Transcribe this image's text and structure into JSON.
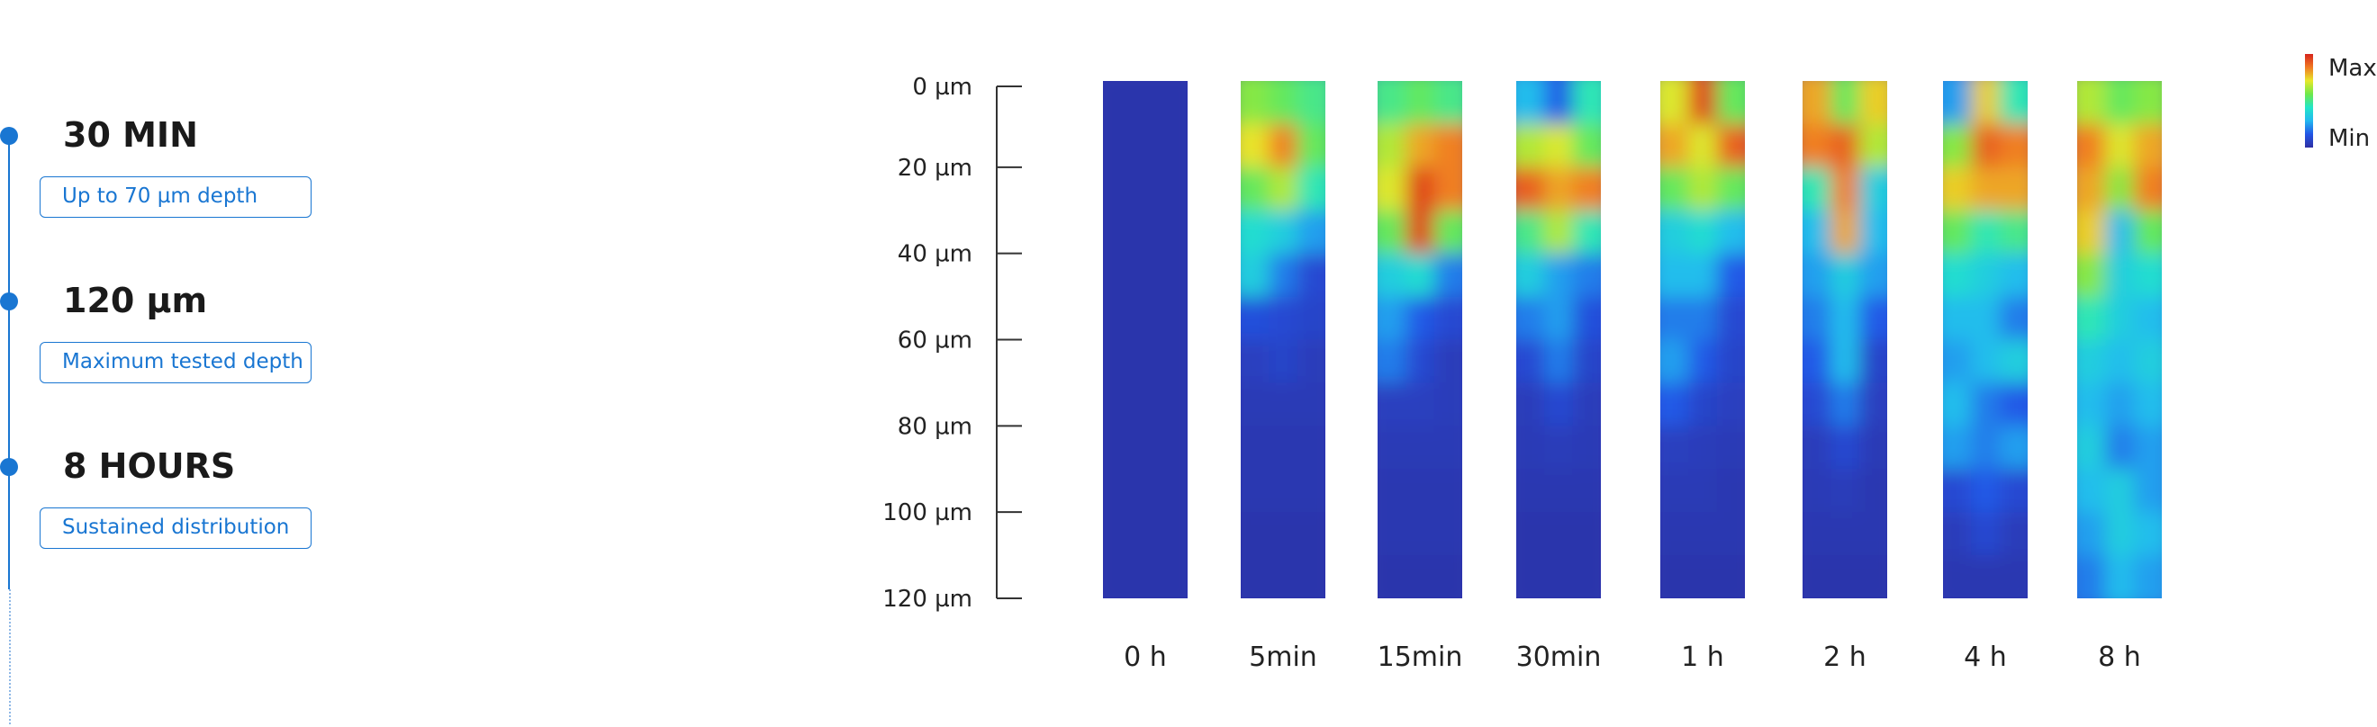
{
  "stats": [
    {
      "value": "30 MIN",
      "label": "Up to 70 µm depth"
    },
    {
      "value": "120 µm",
      "label": "Maximum tested depth"
    },
    {
      "value": "8 HOURS",
      "label": "Sustained distribution"
    }
  ],
  "chart_data": {
    "type": "heatmap",
    "title": "",
    "xlabel": "",
    "ylabel": "",
    "categories": [
      "0 h",
      "5min",
      "15min",
      "30min",
      "1 h",
      "2 h",
      "4 h",
      "8 h"
    ],
    "y_ticks": [
      "0 µm",
      "20 µm",
      "40 µm",
      "60 µm",
      "80 µm",
      "100 µm",
      "120 µm"
    ],
    "ylim": [
      0,
      120
    ],
    "y_unit": "µm",
    "legend": {
      "max_label": "Max",
      "min_label": "Min",
      "position": "top-right"
    },
    "colormap": [
      "#2e2fa3",
      "#2255e6",
      "#22b8f0",
      "#22e6c8",
      "#6ee84a",
      "#e8e82a",
      "#f07a22",
      "#d6241c"
    ],
    "intensity_scale": [
      0,
      1
    ],
    "series": [
      {
        "values": [
          [
            0.02,
            0.02,
            0.02
          ],
          [
            0.02,
            0.02,
            0.02
          ],
          [
            0.02,
            0.02,
            0.02
          ],
          [
            0.02,
            0.02,
            0.02
          ],
          [
            0.02,
            0.02,
            0.02
          ],
          [
            0.02,
            0.02,
            0.02
          ],
          [
            0.02,
            0.02,
            0.02
          ],
          [
            0.02,
            0.02,
            0.02
          ],
          [
            0.02,
            0.02,
            0.02
          ],
          [
            0.02,
            0.02,
            0.02
          ],
          [
            0.02,
            0.02,
            0.02
          ],
          [
            0.02,
            0.02,
            0.02
          ]
        ]
      },
      {
        "values": [
          [
            0.6,
            0.55,
            0.5
          ],
          [
            0.72,
            0.85,
            0.55
          ],
          [
            0.55,
            0.65,
            0.45
          ],
          [
            0.4,
            0.35,
            0.25
          ],
          [
            0.35,
            0.2,
            0.1
          ],
          [
            0.12,
            0.1,
            0.08
          ],
          [
            0.06,
            0.08,
            0.05
          ],
          [
            0.04,
            0.04,
            0.04
          ],
          [
            0.03,
            0.03,
            0.03
          ],
          [
            0.03,
            0.03,
            0.03
          ],
          [
            0.02,
            0.02,
            0.02
          ],
          [
            0.02,
            0.02,
            0.02
          ]
        ]
      },
      {
        "values": [
          [
            0.5,
            0.55,
            0.5
          ],
          [
            0.65,
            0.8,
            0.85
          ],
          [
            0.7,
            0.95,
            0.85
          ],
          [
            0.55,
            0.95,
            0.55
          ],
          [
            0.35,
            0.4,
            0.2
          ],
          [
            0.25,
            0.15,
            0.1
          ],
          [
            0.2,
            0.1,
            0.05
          ],
          [
            0.06,
            0.06,
            0.05
          ],
          [
            0.04,
            0.04,
            0.04
          ],
          [
            0.03,
            0.03,
            0.03
          ],
          [
            0.03,
            0.03,
            0.03
          ],
          [
            0.02,
            0.02,
            0.02
          ]
        ]
      },
      {
        "values": [
          [
            0.3,
            0.15,
            0.45
          ],
          [
            0.65,
            0.7,
            0.55
          ],
          [
            0.9,
            0.8,
            0.85
          ],
          [
            0.5,
            0.65,
            0.45
          ],
          [
            0.35,
            0.25,
            0.2
          ],
          [
            0.2,
            0.25,
            0.12
          ],
          [
            0.1,
            0.2,
            0.08
          ],
          [
            0.05,
            0.1,
            0.05
          ],
          [
            0.04,
            0.05,
            0.04
          ],
          [
            0.03,
            0.03,
            0.03
          ],
          [
            0.02,
            0.02,
            0.02
          ],
          [
            0.02,
            0.02,
            0.02
          ]
        ]
      },
      {
        "values": [
          [
            0.7,
            0.95,
            0.55
          ],
          [
            0.8,
            0.7,
            0.9
          ],
          [
            0.55,
            0.65,
            0.55
          ],
          [
            0.35,
            0.4,
            0.3
          ],
          [
            0.3,
            0.3,
            0.15
          ],
          [
            0.2,
            0.2,
            0.1
          ],
          [
            0.25,
            0.15,
            0.08
          ],
          [
            0.15,
            0.08,
            0.06
          ],
          [
            0.06,
            0.05,
            0.04
          ],
          [
            0.04,
            0.04,
            0.03
          ],
          [
            0.03,
            0.03,
            0.03
          ],
          [
            0.02,
            0.02,
            0.02
          ]
        ]
      },
      {
        "values": [
          [
            0.8,
            0.55,
            0.75
          ],
          [
            0.85,
            0.9,
            0.65
          ],
          [
            0.45,
            0.85,
            0.35
          ],
          [
            0.3,
            0.8,
            0.3
          ],
          [
            0.25,
            0.35,
            0.25
          ],
          [
            0.2,
            0.3,
            0.15
          ],
          [
            0.15,
            0.3,
            0.08
          ],
          [
            0.1,
            0.2,
            0.06
          ],
          [
            0.05,
            0.1,
            0.04
          ],
          [
            0.04,
            0.05,
            0.03
          ],
          [
            0.03,
            0.03,
            0.03
          ],
          [
            0.02,
            0.02,
            0.02
          ]
        ]
      },
      {
        "values": [
          [
            0.25,
            0.75,
            0.45
          ],
          [
            0.6,
            0.9,
            0.85
          ],
          [
            0.75,
            0.8,
            0.8
          ],
          [
            0.55,
            0.45,
            0.5
          ],
          [
            0.4,
            0.35,
            0.3
          ],
          [
            0.3,
            0.3,
            0.2
          ],
          [
            0.25,
            0.3,
            0.35
          ],
          [
            0.3,
            0.2,
            0.15
          ],
          [
            0.25,
            0.2,
            0.25
          ],
          [
            0.1,
            0.15,
            0.1
          ],
          [
            0.05,
            0.1,
            0.05
          ],
          [
            0.03,
            0.03,
            0.03
          ]
        ]
      },
      {
        "values": [
          [
            0.65,
            0.55,
            0.6
          ],
          [
            0.85,
            0.7,
            0.8
          ],
          [
            0.8,
            0.6,
            0.85
          ],
          [
            0.75,
            0.3,
            0.55
          ],
          [
            0.6,
            0.35,
            0.4
          ],
          [
            0.45,
            0.35,
            0.3
          ],
          [
            0.35,
            0.3,
            0.35
          ],
          [
            0.3,
            0.25,
            0.3
          ],
          [
            0.35,
            0.2,
            0.25
          ],
          [
            0.3,
            0.35,
            0.25
          ],
          [
            0.25,
            0.35,
            0.3
          ],
          [
            0.2,
            0.3,
            0.25
          ]
        ]
      }
    ]
  }
}
